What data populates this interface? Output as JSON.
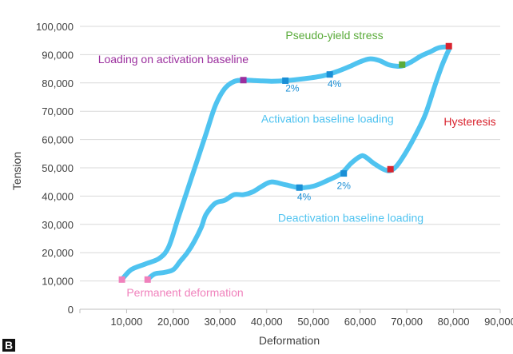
{
  "panel_label": "B",
  "chart_data": {
    "type": "line",
    "xlabel": "Deformation",
    "ylabel": "Tension",
    "xlim": [
      0,
      90000
    ],
    "ylim": [
      0,
      100000
    ],
    "x_ticks": [
      "10,000",
      "20,000",
      "30,000",
      "40,000",
      "50,000",
      "60,000",
      "70,000",
      "80,000",
      "90,000"
    ],
    "y_ticks": [
      "0",
      "10,000",
      "20,000",
      "30,000",
      "40,000",
      "50,000",
      "60,000",
      "70,000",
      "80,000",
      "90,000",
      "100,000"
    ],
    "grid": "horizontal",
    "legend": "none",
    "colors": {
      "curve": "#4fc3f0",
      "purple": "#9b2f9e",
      "blue": "#1a8fd6",
      "green": "#5aab3a",
      "red": "#d9232e",
      "pink": "#f081bc",
      "axis_text": "#404040"
    },
    "series": [
      {
        "x": [
          9000,
          11000,
          14000,
          17000,
          19000,
          21000,
          23000,
          25000,
          27000,
          29000,
          31000,
          33000,
          35000,
          38000,
          41000,
          44000,
          48000,
          52000,
          55000,
          58000,
          60000,
          62000,
          64000,
          66000,
          67500,
          69000,
          71000,
          73000,
          75000,
          77000,
          79000,
          78500,
          77500,
          76000,
          74000,
          72000,
          70000,
          68000,
          66500,
          65000,
          63000,
          61000,
          60000,
          58000,
          56000,
          53000,
          50000,
          47000,
          44000,
          41000,
          39000,
          37000,
          35000,
          33000,
          31000,
          29000,
          27000,
          26000,
          24500,
          23000,
          21500,
          20000,
          18000,
          16000,
          14500
        ],
        "y": [
          10500,
          14000,
          16000,
          18000,
          22000,
          32000,
          42000,
          52000,
          62000,
          72000,
          78000,
          80500,
          81000,
          80800,
          80600,
          80800,
          81500,
          82500,
          84000,
          86000,
          87500,
          88500,
          88000,
          86500,
          86000,
          86000,
          87500,
          89500,
          91000,
          92500,
          92500,
          90000,
          86000,
          79000,
          69000,
          62000,
          56000,
          51000,
          49000,
          49500,
          51500,
          54000,
          54000,
          51500,
          48000,
          45500,
          43500,
          43000,
          44000,
          45000,
          43500,
          41500,
          40500,
          40500,
          38500,
          37500,
          33500,
          29000,
          24000,
          20000,
          17000,
          14000,
          13000,
          12500,
          10500
        ]
      }
    ],
    "markers": [
      {
        "x": 9000,
        "y": 10500,
        "color": "pink"
      },
      {
        "x": 14500,
        "y": 10500,
        "color": "pink"
      },
      {
        "x": 35000,
        "y": 81000,
        "color": "purple"
      },
      {
        "x": 44000,
        "y": 80800,
        "color": "blue"
      },
      {
        "x": 53500,
        "y": 83000,
        "color": "blue"
      },
      {
        "x": 69000,
        "y": 86500,
        "color": "green"
      },
      {
        "x": 79000,
        "y": 93000,
        "color": "red"
      },
      {
        "x": 66500,
        "y": 49500,
        "color": "red"
      },
      {
        "x": 56500,
        "y": 48000,
        "color": "blue"
      },
      {
        "x": 47000,
        "y": 43000,
        "color": "blue"
      }
    ],
    "annotations": [
      {
        "text": "Pseudo-yield stress",
        "x": 54500,
        "y": 95500,
        "color": "green",
        "size": "normal"
      },
      {
        "text": "Loading on activation baseline",
        "x": 20000,
        "y": 87000,
        "color": "purple",
        "size": "normal"
      },
      {
        "text": "2%",
        "x": 45500,
        "y": 77000,
        "color": "blue",
        "size": "small"
      },
      {
        "text": "4%",
        "x": 54500,
        "y": 78500,
        "color": "blue",
        "size": "small"
      },
      {
        "text": "Activation baseline loading",
        "x": 53000,
        "y": 66000,
        "color": "curve",
        "size": "normal"
      },
      {
        "text": "Hysteresis",
        "x": 83500,
        "y": 65000,
        "color": "red",
        "size": "normal"
      },
      {
        "text": "4%",
        "x": 48000,
        "y": 38500,
        "color": "blue",
        "size": "small"
      },
      {
        "text": "2%",
        "x": 56500,
        "y": 42500,
        "color": "blue",
        "size": "small"
      },
      {
        "text": "Deactivation baseline loading",
        "x": 58000,
        "y": 31000,
        "color": "curve",
        "size": "normal"
      },
      {
        "text": "Permanent deformation",
        "x": 22500,
        "y": 4500,
        "color": "pink",
        "size": "normal"
      }
    ]
  }
}
